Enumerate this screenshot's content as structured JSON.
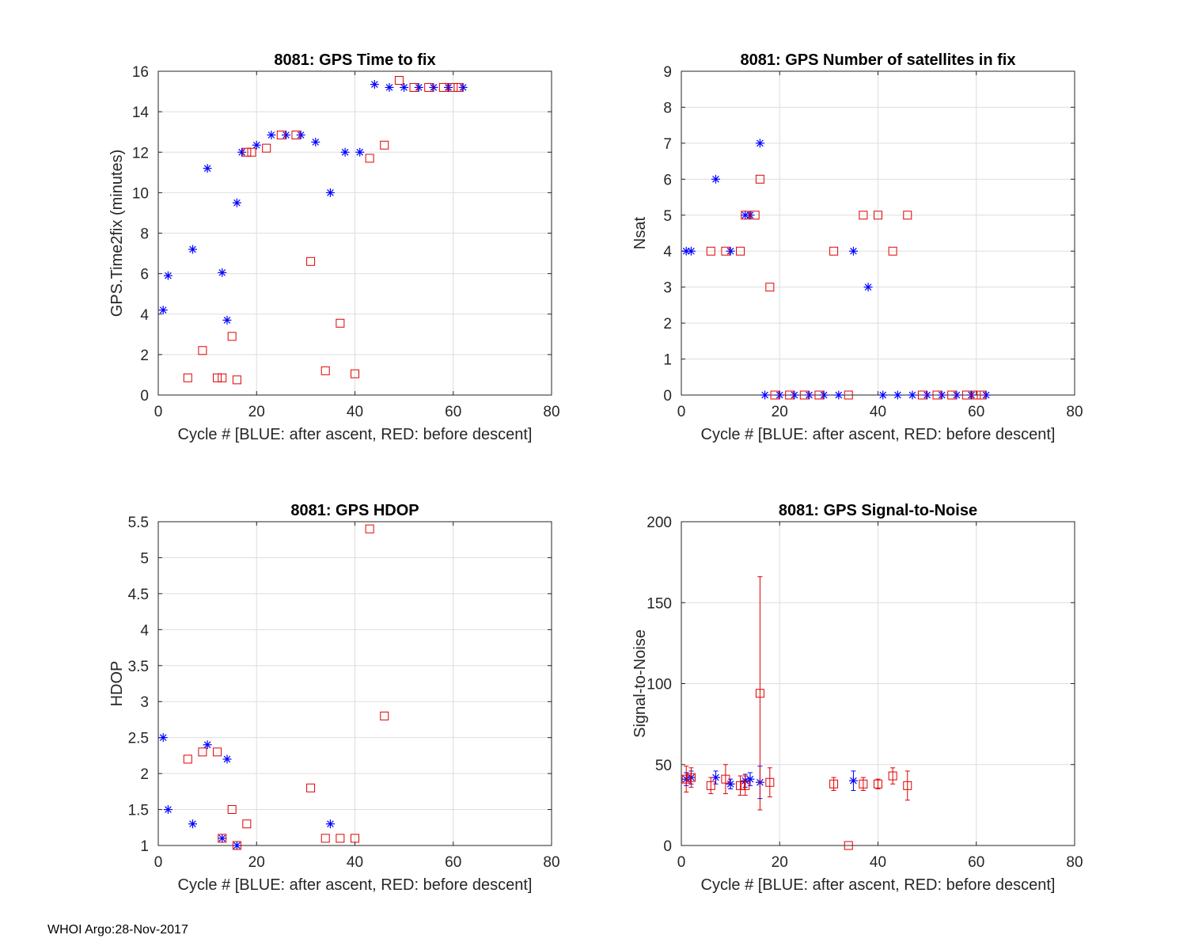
{
  "figure": {
    "footer": "WHOI Argo:28-Nov-2017",
    "colors": {
      "after_ascent": "#0000ff",
      "before_descent": "#e00000",
      "grid": "#dedede",
      "axis": "#262626"
    }
  },
  "chart_data": [
    {
      "type": "scatter",
      "title": "8081: GPS Time to fix",
      "xlabel": "Cycle #  [BLUE: after ascent, RED: before descent]",
      "ylabel": "GPS.Time2fix (minutes)",
      "xlim": [
        0,
        80
      ],
      "ylim": [
        0,
        16
      ],
      "xticks": [
        0,
        20,
        40,
        60,
        80
      ],
      "yticks": [
        0,
        2,
        4,
        6,
        8,
        10,
        12,
        14,
        16
      ],
      "grid": true,
      "series": [
        {
          "name": "after ascent",
          "marker": "asterisk",
          "color": "#0000ff",
          "x": [
            1,
            2,
            7,
            10,
            13,
            14,
            16,
            17,
            20,
            23,
            26,
            29,
            32,
            35,
            38,
            41,
            44,
            47,
            50,
            53,
            56,
            59,
            62
          ],
          "y": [
            4.2,
            5.9,
            7.2,
            11.2,
            6.05,
            3.7,
            9.5,
            12.0,
            12.35,
            12.85,
            12.85,
            12.85,
            12.5,
            10.0,
            12.0,
            12.0,
            15.35,
            15.2,
            15.2,
            15.2,
            15.2,
            15.2,
            15.2
          ]
        },
        {
          "name": "before descent",
          "marker": "square",
          "color": "#e00000",
          "x": [
            6,
            12,
            13,
            15,
            16,
            9,
            18,
            19,
            22,
            25,
            28,
            31,
            34,
            37,
            40,
            43,
            46,
            49,
            52,
            55,
            58,
            60,
            61
          ],
          "y": [
            0.85,
            0.85,
            0.85,
            2.9,
            0.75,
            2.2,
            12.0,
            12.0,
            12.2,
            12.85,
            12.85,
            6.6,
            1.2,
            3.55,
            1.05,
            11.7,
            12.35,
            15.55,
            15.2,
            15.2,
            15.2,
            15.2,
            15.2
          ]
        }
      ]
    },
    {
      "type": "scatter",
      "title": "8081: GPS Number of satellites in fix",
      "xlabel": "Cycle #  [BLUE: after ascent, RED: before descent]",
      "ylabel": "Nsat",
      "xlim": [
        0,
        80
      ],
      "ylim": [
        0,
        9
      ],
      "xticks": [
        0,
        20,
        40,
        60,
        80
      ],
      "yticks": [
        0,
        1,
        2,
        3,
        4,
        5,
        6,
        7,
        8,
        9
      ],
      "grid": true,
      "series": [
        {
          "name": "after ascent",
          "marker": "asterisk",
          "color": "#0000ff",
          "x": [
            1,
            2,
            7,
            10,
            13,
            14,
            16,
            17,
            20,
            23,
            26,
            29,
            32,
            35,
            38,
            41,
            44,
            47,
            50,
            53,
            56,
            59,
            62
          ],
          "y": [
            4,
            4,
            6,
            4,
            5,
            5,
            7,
            0,
            0,
            0,
            0,
            0,
            0,
            4,
            3,
            0,
            0,
            0,
            0,
            0,
            0,
            0,
            0
          ]
        },
        {
          "name": "before descent",
          "marker": "square",
          "color": "#e00000",
          "x": [
            6,
            9,
            12,
            13,
            15,
            16,
            18,
            19,
            22,
            25,
            28,
            31,
            34,
            37,
            40,
            43,
            46,
            49,
            52,
            55,
            58,
            60,
            61
          ],
          "y": [
            4,
            4,
            4,
            5,
            5,
            6,
            3,
            0,
            0,
            0,
            0,
            4,
            0,
            5,
            5,
            4,
            5,
            0,
            0,
            0,
            0,
            0,
            0
          ]
        }
      ]
    },
    {
      "type": "scatter",
      "title": "8081: GPS HDOP",
      "xlabel": "Cycle #  [BLUE: after ascent, RED: before descent]",
      "ylabel": "HDOP",
      "xlim": [
        0,
        80
      ],
      "ylim": [
        1,
        5.5
      ],
      "xticks": [
        0,
        20,
        40,
        60,
        80
      ],
      "yticks": [
        1,
        1.5,
        2,
        2.5,
        3,
        3.5,
        4,
        4.5,
        5,
        5.5
      ],
      "grid": true,
      "series": [
        {
          "name": "after ascent",
          "marker": "asterisk",
          "color": "#0000ff",
          "x": [
            1,
            2,
            7,
            10,
            13,
            14,
            16,
            35
          ],
          "y": [
            2.5,
            1.5,
            1.3,
            2.4,
            1.1,
            2.2,
            1.0,
            1.3
          ]
        },
        {
          "name": "before descent",
          "marker": "square",
          "color": "#e00000",
          "x": [
            6,
            9,
            12,
            13,
            15,
            16,
            18,
            31,
            34,
            37,
            40,
            43,
            46
          ],
          "y": [
            2.2,
            2.3,
            2.3,
            1.1,
            1.5,
            1.0,
            1.3,
            1.8,
            1.1,
            1.1,
            1.1,
            5.4,
            2.8
          ]
        }
      ]
    },
    {
      "type": "scatter",
      "title": "8081: GPS Signal-to-Noise",
      "xlabel": "Cycle #  [BLUE: after ascent, RED: before descent]",
      "ylabel": "Signal-to-Noise",
      "xlim": [
        0,
        80
      ],
      "ylim": [
        0,
        200
      ],
      "xticks": [
        0,
        20,
        40,
        60,
        80
      ],
      "yticks": [
        0,
        50,
        100,
        150,
        200
      ],
      "grid": true,
      "series": [
        {
          "name": "after ascent",
          "marker": "asterisk",
          "color": "#0000ff",
          "x": [
            1,
            2,
            7,
            10,
            13,
            14,
            16,
            35
          ],
          "y": [
            41,
            42,
            42,
            38,
            40,
            41,
            39,
            40
          ],
          "err": [
            4,
            4,
            4,
            3,
            4,
            4,
            10,
            6
          ]
        },
        {
          "name": "before descent",
          "marker": "square",
          "color": "#e00000",
          "x": [
            1,
            2,
            6,
            9,
            12,
            13,
            16,
            18,
            31,
            34,
            37,
            40,
            43,
            46
          ],
          "y": [
            41,
            42,
            37,
            41,
            37,
            37,
            94,
            39,
            38,
            0,
            38,
            38,
            43,
            37
          ],
          "err": [
            8,
            6,
            5,
            9,
            6,
            6,
            72,
            9,
            4,
            0,
            4,
            3,
            5,
            9
          ]
        }
      ]
    }
  ]
}
